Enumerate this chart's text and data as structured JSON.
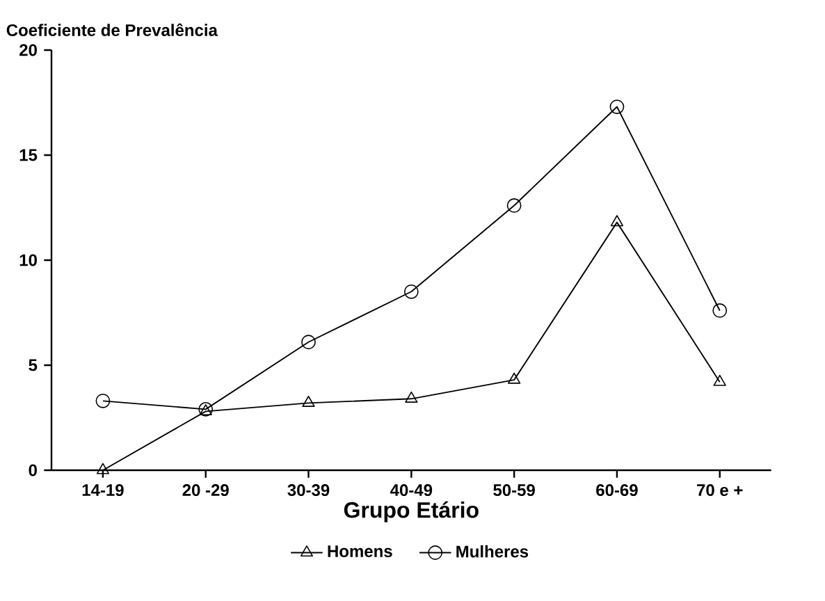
{
  "chart_data": {
    "type": "line",
    "ylabel": "Coeficiente de Prevalência",
    "xlabel": "Grupo Etário",
    "categories": [
      "14-19",
      "20 -29",
      "30-39",
      "40-49",
      "50-59",
      "60-69",
      "70 e +"
    ],
    "series": [
      {
        "name": "Homens",
        "color": "#000000",
        "marker": "triangle",
        "values": [
          0,
          2.8,
          3.2,
          3.4,
          4.3,
          11.8,
          4.2
        ]
      },
      {
        "name": "Mulheres",
        "color": "#000000",
        "marker": "circle",
        "values": [
          3.3,
          2.9,
          6.1,
          8.5,
          12.6,
          17.3,
          7.6
        ]
      }
    ],
    "ylim": [
      0,
      20
    ],
    "yticks": [
      0,
      5,
      10,
      15,
      20
    ],
    "grid": false,
    "legend": "bottom",
    "line_style": "solid"
  }
}
